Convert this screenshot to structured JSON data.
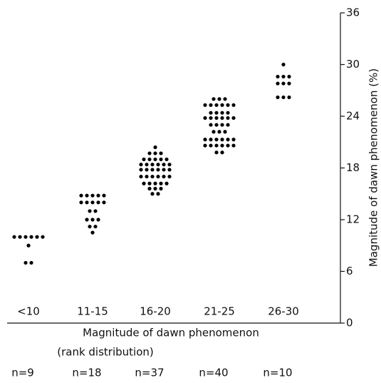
{
  "chart_data": {
    "type": "dotplot",
    "categories": [
      "<10",
      "11-15",
      "16-20",
      "21-25",
      "26-30"
    ],
    "values": [
      [
        10,
        10,
        10,
        10,
        10,
        10,
        9,
        7,
        7
      ],
      [
        14.8,
        14.8,
        14.8,
        14.8,
        14.8,
        14,
        14,
        14,
        14,
        14,
        13,
        13,
        12,
        12,
        12,
        11.2,
        11.2,
        10.5
      ],
      [
        20.4,
        19.7,
        19.7,
        19.7,
        19,
        19,
        19,
        19,
        19,
        18.4,
        18.4,
        18.4,
        18.4,
        18.4,
        18.4,
        17.8,
        17.8,
        17.8,
        17.8,
        17.8,
        17.8,
        17,
        17,
        17,
        17,
        17,
        17,
        16.2,
        16.2,
        16.2,
        16.2,
        16.2,
        15.6,
        15.6,
        15.6,
        15,
        15
      ],
      [
        26,
        26,
        26,
        25.3,
        25.3,
        25.3,
        25.3,
        25.3,
        25.3,
        24.4,
        24.4,
        24.4,
        24.4,
        23.8,
        23.8,
        23.8,
        23.8,
        23.8,
        23.8,
        23,
        23,
        23,
        23,
        22.2,
        22.2,
        22.2,
        21.3,
        21.3,
        21.3,
        21.3,
        21.3,
        21.3,
        20.6,
        20.6,
        20.6,
        20.6,
        20.6,
        20.6,
        19.8,
        19.8
      ],
      [
        30,
        28.6,
        28.6,
        28.6,
        27.8,
        27.8,
        27.8,
        26.2,
        26.2,
        26.2
      ]
    ],
    "n_labels": [
      "n=9",
      "n=18",
      "n=37",
      "n=40",
      "n=10"
    ],
    "xlabel": [
      "Magnitude of dawn phenomenon",
      "(rank distribution)"
    ],
    "ylabel": "Magnitude of dawn phenomenon (%)",
    "color": "#000000",
    "ylim": [
      0,
      36
    ],
    "yticks": [
      0,
      6,
      12,
      18,
      24,
      30,
      36
    ]
  }
}
